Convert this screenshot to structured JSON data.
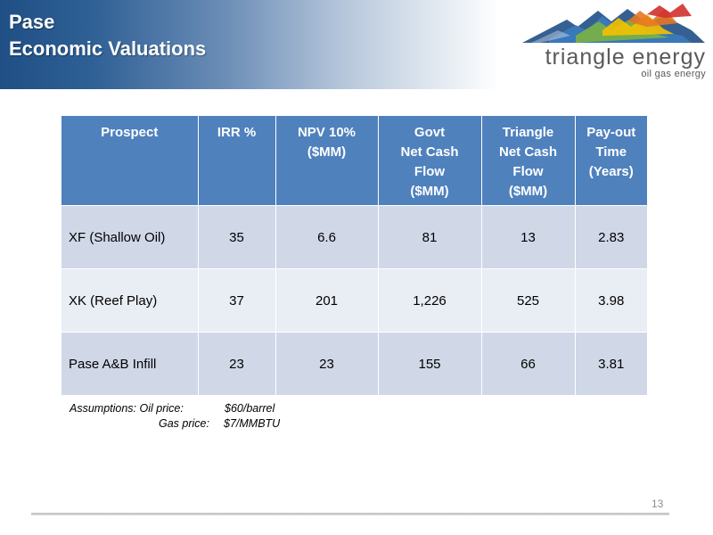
{
  "slide": {
    "title_line1": "Pase",
    "title_line2": "Economic Valuations",
    "page_number": "13"
  },
  "logo": {
    "wordmark": "triangle energy",
    "tagline": "oil gas energy",
    "colors": [
      "#1f4f85",
      "#3a7cc0",
      "#7bb241",
      "#f5c100",
      "#e87722",
      "#d0312d"
    ]
  },
  "table": {
    "headers": [
      "Prospect",
      "IRR %",
      "NPV 10% ($MM)",
      "Govt Net Cash Flow ($MM)",
      "Triangle Net Cash Flow ($MM)",
      "Pay-out Time (Years)"
    ],
    "header_lines": [
      [
        "Prospect"
      ],
      [
        "IRR %"
      ],
      [
        "NPV 10%",
        "($MM)"
      ],
      [
        "Govt",
        "Net Cash",
        "Flow",
        "($MM)"
      ],
      [
        "Triangle",
        "Net Cash",
        "Flow",
        "($MM)"
      ],
      [
        "Pay-out",
        "Time",
        "(Years)"
      ]
    ],
    "rows": [
      [
        "XF (Shallow Oil)",
        "35",
        "6.6",
        "81",
        "13",
        "2.83"
      ],
      [
        "XK (Reef Play)",
        "37",
        "201",
        "1,226",
        "525",
        "3.98"
      ],
      [
        "Pase A&B Infill",
        "23",
        "23",
        "155",
        "66",
        "3.81"
      ]
    ],
    "header_color": "#4f81bd",
    "row_color_odd": "#d0d8e8",
    "row_color_even": "#e9edf4"
  },
  "assumptions": {
    "label": "Assumptions:",
    "oil_label": "Oil price:",
    "oil_value": "$60/barrel",
    "gas_label": "Gas price:",
    "gas_value": "$7/MMBTU"
  }
}
